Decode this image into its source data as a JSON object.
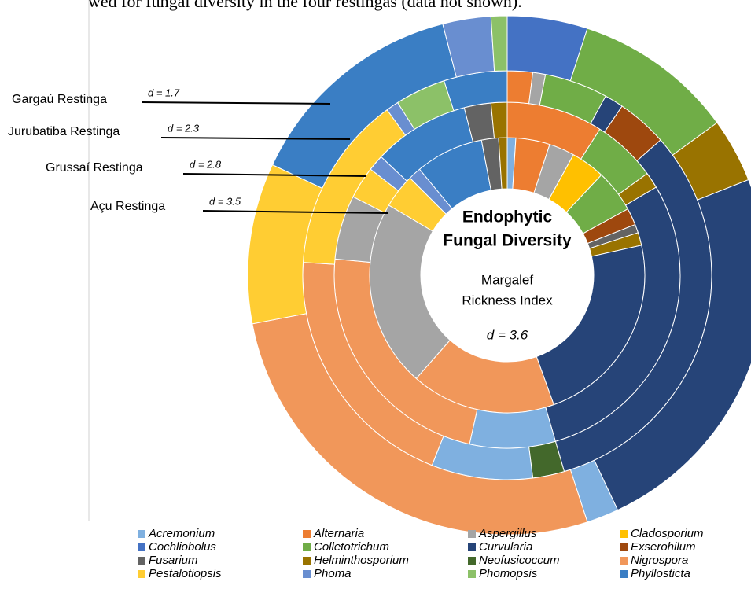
{
  "caption_fragment": "wed for fungal diversity in the four restingas (data not shown).",
  "chart_data": {
    "type": "multi-donut",
    "center_title": [
      "Endophytic",
      "Fungal Diversity"
    ],
    "center_subtitle": [
      "Margalef",
      "Rickness Index"
    ],
    "center_value": "d = 3.6",
    "legend": [
      {
        "name": "Acremonium",
        "color": "#7fb0e0"
      },
      {
        "name": "Alternaria",
        "color": "#ed7d31"
      },
      {
        "name": "Aspergillus",
        "color": "#a5a5a5"
      },
      {
        "name": "Cladosporium",
        "color": "#ffc000"
      },
      {
        "name": "Cochliobolus",
        "color": "#4472c4"
      },
      {
        "name": "Colletotrichum",
        "color": "#70ad47"
      },
      {
        "name": "Curvularia",
        "color": "#264478"
      },
      {
        "name": "Exserohilum",
        "color": "#9e480e"
      },
      {
        "name": "Fusarium",
        "color": "#636363"
      },
      {
        "name": "Helminthosporium",
        "color": "#997300"
      },
      {
        "name": "Neofusicoccum",
        "color": "#43682b"
      },
      {
        "name": "Nigrospora",
        "color": "#f1975a"
      },
      {
        "name": "Pestalotiopsis",
        "color": "#ffcd33"
      },
      {
        "name": "Phoma",
        "color": "#698ed0"
      },
      {
        "name": "Phomopsis",
        "color": "#8cc168"
      },
      {
        "name": "Phyllosticta",
        "color": "#3a7ec4"
      }
    ],
    "rings": [
      {
        "label": "Açu Restinga",
        "d_label": "d = 3.5",
        "segments": [
          {
            "genus": "Acremonium",
            "value": 1
          },
          {
            "genus": "Alternaria",
            "value": 4
          },
          {
            "genus": "Aspergillus",
            "value": 3
          },
          {
            "genus": "Cladosporium",
            "value": 4
          },
          {
            "genus": "Colletotrichum",
            "value": 5
          },
          {
            "genus": "Exserohilum",
            "value": 2
          },
          {
            "genus": "Fusarium",
            "value": 1
          },
          {
            "genus": "Helminthosporium",
            "value": 1.5
          },
          {
            "genus": "Curvularia",
            "value": 23
          },
          {
            "genus": "Nigrospora",
            "value": 17
          },
          {
            "genus": "Aspergillus",
            "value": 22
          },
          {
            "genus": "Pestalotiopsis",
            "value": 4
          },
          {
            "genus": "Phoma",
            "value": 1.5
          },
          {
            "genus": "Phyllosticta",
            "value": 8
          },
          {
            "genus": "Fusarium",
            "value": 2
          },
          {
            "genus": "Helminthosporium",
            "value": 1
          }
        ]
      },
      {
        "label": "Grussaí Restinga",
        "d_label": "d = 2.8",
        "segments": [
          {
            "genus": "Alternaria",
            "value": 9
          },
          {
            "genus": "Colletotrichum",
            "value": 6
          },
          {
            "genus": "Helminthosporium",
            "value": 1.5
          },
          {
            "genus": "Curvularia",
            "value": 29
          },
          {
            "genus": "Acremonium",
            "value": 8
          },
          {
            "genus": "Nigrospora",
            "value": 23
          },
          {
            "genus": "Aspergillus",
            "value": 6
          },
          {
            "genus": "Pestalotiopsis",
            "value": 3
          },
          {
            "genus": "Phoma",
            "value": 1.5
          },
          {
            "genus": "Phyllosticta",
            "value": 9
          },
          {
            "genus": "Fusarium",
            "value": 2.5
          },
          {
            "genus": "Helminthosporium",
            "value": 1.5
          }
        ]
      },
      {
        "label": "Jurubatiba Restinga",
        "d_label": "d = 2.3",
        "segments": [
          {
            "genus": "Alternaria",
            "value": 2
          },
          {
            "genus": "Aspergillus",
            "value": 1
          },
          {
            "genus": "Colletotrichum",
            "value": 5
          },
          {
            "genus": "Curvularia",
            "value": 1.5
          },
          {
            "genus": "Exserohilum",
            "value": 4
          },
          {
            "genus": "Curvularia",
            "value": 32
          },
          {
            "genus": "Neofusicoccum",
            "value": 2.5
          },
          {
            "genus": "Acremonium",
            "value": 8
          },
          {
            "genus": "Nigrospora",
            "value": 20
          },
          {
            "genus": "Pestalotiopsis",
            "value": 14
          },
          {
            "genus": "Phoma",
            "value": 1
          },
          {
            "genus": "Phomopsis",
            "value": 4
          },
          {
            "genus": "Phyllosticta",
            "value": 5
          }
        ]
      },
      {
        "label": "Gargaú Restinga",
        "d_label": "d = 1.7",
        "segments": [
          {
            "genus": "Cochliobolus",
            "value": 5
          },
          {
            "genus": "Colletotrichum",
            "value": 10
          },
          {
            "genus": "Helminthosporium",
            "value": 4
          },
          {
            "genus": "Curvularia",
            "value": 24
          },
          {
            "genus": "Acremonium",
            "value": 2
          },
          {
            "genus": "Nigrospora",
            "value": 27
          },
          {
            "genus": "Pestalotiopsis",
            "value": 10
          },
          {
            "genus": "Phyllosticta",
            "value": 14
          },
          {
            "genus": "Phoma",
            "value": 3
          },
          {
            "genus": "Phomopsis",
            "value": 1
          }
        ]
      }
    ]
  }
}
